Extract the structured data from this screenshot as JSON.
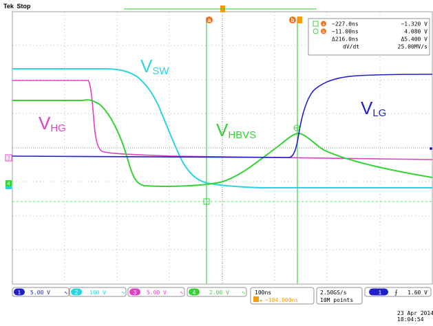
{
  "status": {
    "brand": "Tek",
    "state": "Stop"
  },
  "cursor_markers": {
    "a": "a",
    "b": "b"
  },
  "cursor_readout": {
    "row_a": {
      "time": "−227.0ns",
      "value": "−1.320 V"
    },
    "row_b": {
      "time": "−11.00ns",
      "value": "4.080 V"
    },
    "row_delta": {
      "time": "Δ216.0ns",
      "value": "Δ5.400 V"
    },
    "row_rate": {
      "label": "dV/dt",
      "value": "25.00MV/s"
    }
  },
  "channel_labels": [
    {
      "main": "V",
      "sub": "SW",
      "color": "#2ad4e0"
    },
    {
      "main": "V",
      "sub": "HG",
      "color": "#e040c8"
    },
    {
      "main": "V",
      "sub": "HBVS",
      "color": "#34d234"
    },
    {
      "main": "V",
      "sub": "LG",
      "color": "#2020c8"
    }
  ],
  "bottom_bar": {
    "ch1": {
      "num": "1",
      "scale": "5.00 V",
      "color": "#2020c8"
    },
    "ch2": {
      "num": "2",
      "scale": "100 V",
      "color": "#2ad4e0"
    },
    "ch3": {
      "num": "3",
      "scale": "5.00 V",
      "color": "#e040c8"
    },
    "ch4": {
      "num": "4",
      "scale": "2.00 V",
      "color": "#34d234"
    },
    "timebase": {
      "scale": "100ns",
      "position": "−184.000ns"
    },
    "sampling": {
      "rate": "2.50GS/s",
      "points": "10M points"
    },
    "trigger": {
      "source": "1",
      "level": "1.60 V"
    }
  },
  "datetime": {
    "date": "23 Apr 2014",
    "time": "18:04:54"
  },
  "ground_markers": {
    "ch3": "3",
    "ch4": "4"
  }
}
